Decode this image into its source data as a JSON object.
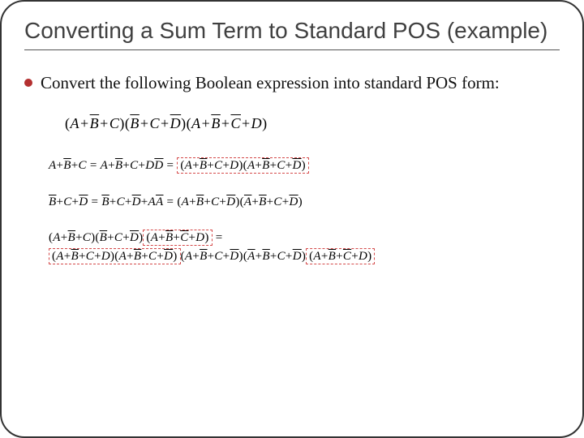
{
  "slide": {
    "title": "Converting a Sum Term to Standard POS (example)",
    "bullet": "Convert the following Boolean expression into standard POS form:",
    "colors": {
      "bullet_dot": "#b43030",
      "dashed_border": "#d44848",
      "title_color": "#404040",
      "border_color": "#333333"
    },
    "fonts": {
      "title_family": "Arial",
      "title_size": 28,
      "body_family": "Georgia",
      "body_size": 21,
      "math_family": "Times New Roman",
      "math_main_size": 18,
      "math_row_size": 15
    },
    "math": {
      "main": {
        "t1": {
          "a": "A",
          "b_bar": "B",
          "c": "C"
        },
        "t2": {
          "b_bar": "B",
          "c": "C",
          "d_bar": "D"
        },
        "t3": {
          "a": "A",
          "b_bar": "B",
          "c_bar": "C",
          "d": "D"
        }
      },
      "row1": {
        "lhs": {
          "a": "A",
          "b_bar": "B",
          "c": "C"
        },
        "mid": {
          "a": "A",
          "b_bar": "B",
          "c": "C",
          "dd_bar": "D"
        },
        "r1": {
          "a": "A",
          "b_bar": "B",
          "c": "C",
          "d": "D"
        },
        "r2": {
          "a": "A",
          "b_bar": "B",
          "c": "C",
          "d_bar": "D"
        }
      },
      "row2": {
        "lhs": {
          "b_bar": "B",
          "c": "C",
          "d_bar": "D"
        },
        "mid": {
          "b_bar": "B",
          "c": "C",
          "d_bar": "D",
          "aa_bar": "A"
        },
        "r1": {
          "a": "A",
          "b_bar": "B",
          "c": "C",
          "d_bar": "D"
        },
        "r2": {
          "a_bar": "A",
          "b_bar": "B",
          "c": "C",
          "d_bar": "D"
        }
      },
      "row3": {
        "l1": {
          "a": "A",
          "b_bar": "B",
          "c": "C"
        },
        "l2": {
          "b_bar": "B",
          "c": "C",
          "d_bar": "D"
        },
        "l3": {
          "a": "A",
          "b_bar": "B",
          "c_bar": "C",
          "d": "D"
        },
        "f1": {
          "a": "A",
          "b_bar": "B",
          "c": "C",
          "d": "D"
        },
        "f2": {
          "a": "A",
          "b_bar": "B",
          "c": "C",
          "d_bar": "D"
        },
        "f3": {
          "a": "A",
          "b_bar": "B",
          "c": "C",
          "d_bar": "D"
        },
        "f4": {
          "a_bar": "A",
          "b_bar": "B",
          "c": "C",
          "d_bar": "D"
        },
        "f5": {
          "a": "A",
          "b_bar": "B",
          "c_bar": "C",
          "d": "D"
        }
      }
    }
  }
}
